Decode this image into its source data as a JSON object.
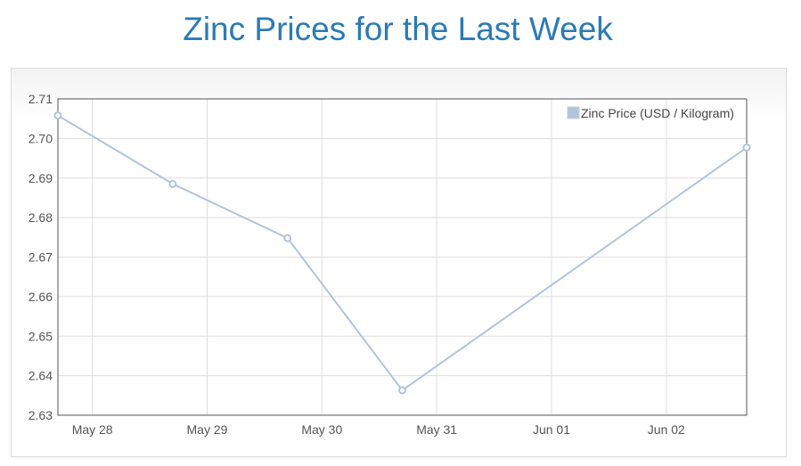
{
  "page": {
    "title": "Zinc Prices for the Last Week"
  },
  "chart_data": {
    "type": "line",
    "title": "Zinc Prices for the Last Week",
    "xlabel": "",
    "ylabel": "",
    "legend": {
      "position": "top-right",
      "entries": [
        "Zinc Price (USD / Kilogram)"
      ]
    },
    "grid": true,
    "xlim": [
      -0.3,
      5.7
    ],
    "ylim": [
      2.63,
      2.71
    ],
    "xticks": [
      0,
      1,
      2,
      3,
      4,
      5
    ],
    "xtick_labels": [
      "May 28",
      "May 29",
      "May 30",
      "May 31",
      "Jun 01",
      "Jun 02"
    ],
    "yticks": [
      2.63,
      2.64,
      2.65,
      2.66,
      2.67,
      2.68,
      2.69,
      2.7,
      2.71
    ],
    "ytick_labels": [
      "2.63",
      "2.64",
      "2.65",
      "2.66",
      "2.67",
      "2.68",
      "2.69",
      "2.70",
      "2.71"
    ],
    "series": [
      {
        "name": "Zinc Price (USD / Kilogram)",
        "color": "#b0c4de",
        "x": [
          -0.3,
          0.7,
          1.7,
          2.7,
          5.7
        ],
        "values": [
          2.7058,
          2.6885,
          2.6748,
          2.6363,
          2.6977
        ]
      }
    ]
  }
}
